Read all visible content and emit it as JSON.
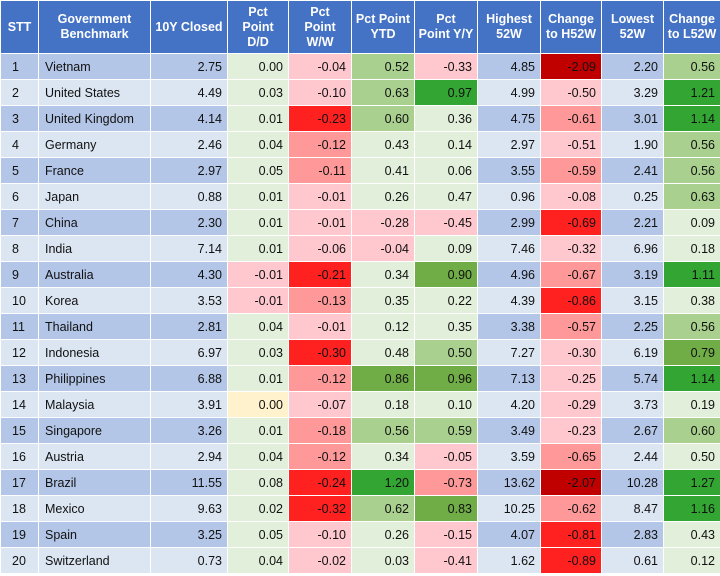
{
  "table": {
    "headers": [
      {
        "l1": "STT",
        "l2": ""
      },
      {
        "l1": "Government",
        "l2": "Benchmark"
      },
      {
        "l1": "10Y Closed",
        "l2": ""
      },
      {
        "l1": "Pct",
        "l2": "Point D/D"
      },
      {
        "l1": "Pct",
        "l2": "Point W/W"
      },
      {
        "l1": "Pct Point",
        "l2": "YTD"
      },
      {
        "l1": "Pct",
        "l2": "Point Y/Y"
      },
      {
        "l1": "Highest",
        "l2": "52W"
      },
      {
        "l1": "Change",
        "l2": "to H52W"
      },
      {
        "l1": "Lowest",
        "l2": "52W"
      },
      {
        "l1": "Change",
        "l2": "to L52W"
      }
    ],
    "colors": {
      "header_bg": "#4472c4",
      "row_odd": "#b4c6e7",
      "row_even": "#dce6f2",
      "neutral": "#e2efda",
      "pos_light": "#c6e0b4",
      "pos_mid": "#a9d08e",
      "pos_strong": "#70ad47",
      "pos_max": "#33a532",
      "neg_light": "#ffc7ce",
      "neg_mid": "#ff9999",
      "neg_strong": "#ff2020",
      "neg_max": "#c00000",
      "zero_highlight": "#fff2cc"
    },
    "rows": [
      {
        "stt": "1",
        "country": "Vietnam",
        "closed": "2.75",
        "dd": "0.00",
        "ww": "-0.04",
        "ytd": "0.52",
        "yy": "-0.33",
        "high": "4.85",
        "ch_high": "-2.09",
        "low": "2.20",
        "ch_low": "0.56",
        "bg": {
          "dd": "neutral",
          "ww": "neg_light",
          "ytd": "pos_mid",
          "yy": "neg_light",
          "ch_high": "neg_max",
          "ch_low": "pos_mid"
        }
      },
      {
        "stt": "2",
        "country": "United States",
        "closed": "4.49",
        "dd": "0.03",
        "ww": "-0.10",
        "ytd": "0.63",
        "yy": "0.97",
        "high": "4.99",
        "ch_high": "-0.50",
        "low": "3.29",
        "ch_low": "1.21",
        "bg": {
          "dd": "neutral",
          "ww": "neg_light",
          "ytd": "pos_mid",
          "yy": "pos_max",
          "ch_high": "neg_light",
          "ch_low": "pos_max"
        }
      },
      {
        "stt": "3",
        "country": "United Kingdom",
        "closed": "4.14",
        "dd": "0.01",
        "ww": "-0.23",
        "ytd": "0.60",
        "yy": "0.36",
        "high": "4.75",
        "ch_high": "-0.61",
        "low": "3.01",
        "ch_low": "1.14",
        "bg": {
          "dd": "neutral",
          "ww": "neg_strong",
          "ytd": "pos_mid",
          "yy": "neutral",
          "ch_high": "neg_mid",
          "ch_low": "pos_max"
        }
      },
      {
        "stt": "4",
        "country": "Germany",
        "closed": "2.46",
        "dd": "0.04",
        "ww": "-0.12",
        "ytd": "0.43",
        "yy": "0.14",
        "high": "2.97",
        "ch_high": "-0.51",
        "low": "1.90",
        "ch_low": "0.56",
        "bg": {
          "dd": "neutral",
          "ww": "neg_mid",
          "ytd": "neutral",
          "yy": "neutral",
          "ch_high": "neg_light",
          "ch_low": "pos_mid"
        }
      },
      {
        "stt": "5",
        "country": "France",
        "closed": "2.97",
        "dd": "0.05",
        "ww": "-0.11",
        "ytd": "0.41",
        "yy": "0.06",
        "high": "3.55",
        "ch_high": "-0.59",
        "low": "2.41",
        "ch_low": "0.56",
        "bg": {
          "dd": "neutral",
          "ww": "neg_mid",
          "ytd": "neutral",
          "yy": "neutral",
          "ch_high": "neg_mid",
          "ch_low": "pos_mid"
        }
      },
      {
        "stt": "6",
        "country": "Japan",
        "closed": "0.88",
        "dd": "0.01",
        "ww": "-0.01",
        "ytd": "0.26",
        "yy": "0.47",
        "high": "0.96",
        "ch_high": "-0.08",
        "low": "0.25",
        "ch_low": "0.63",
        "bg": {
          "dd": "neutral",
          "ww": "neg_light",
          "ytd": "neutral",
          "yy": "neutral",
          "ch_high": "neg_light",
          "ch_low": "pos_mid"
        }
      },
      {
        "stt": "7",
        "country": "China",
        "closed": "2.30",
        "dd": "0.01",
        "ww": "-0.01",
        "ytd": "-0.28",
        "yy": "-0.45",
        "high": "2.99",
        "ch_high": "-0.69",
        "low": "2.21",
        "ch_low": "0.09",
        "bg": {
          "dd": "neutral",
          "ww": "neg_light",
          "ytd": "neg_light",
          "yy": "neg_light",
          "ch_high": "neg_strong",
          "ch_low": "neutral"
        }
      },
      {
        "stt": "8",
        "country": "India",
        "closed": "7.14",
        "dd": "0.01",
        "ww": "-0.06",
        "ytd": "-0.04",
        "yy": "0.09",
        "high": "7.46",
        "ch_high": "-0.32",
        "low": "6.96",
        "ch_low": "0.18",
        "bg": {
          "dd": "neutral",
          "ww": "neg_light",
          "ytd": "neg_light",
          "yy": "neutral",
          "ch_high": "neg_light",
          "ch_low": "neutral"
        }
      },
      {
        "stt": "9",
        "country": "Australia",
        "closed": "4.30",
        "dd": "-0.01",
        "ww": "-0.21",
        "ytd": "0.34",
        "yy": "0.90",
        "high": "4.96",
        "ch_high": "-0.67",
        "low": "3.19",
        "ch_low": "1.11",
        "bg": {
          "dd": "neg_light",
          "ww": "neg_strong",
          "ytd": "neutral",
          "yy": "pos_strong",
          "ch_high": "neg_mid",
          "ch_low": "pos_max"
        }
      },
      {
        "stt": "10",
        "country": "Korea",
        "closed": "3.53",
        "dd": "-0.01",
        "ww": "-0.13",
        "ytd": "0.35",
        "yy": "0.22",
        "high": "4.39",
        "ch_high": "-0.86",
        "low": "3.15",
        "ch_low": "0.38",
        "bg": {
          "dd": "neg_light",
          "ww": "neg_mid",
          "ytd": "neutral",
          "yy": "neutral",
          "ch_high": "neg_strong",
          "ch_low": "neutral"
        }
      },
      {
        "stt": "11",
        "country": "Thailand",
        "closed": "2.81",
        "dd": "0.04",
        "ww": "-0.01",
        "ytd": "0.12",
        "yy": "0.35",
        "high": "3.38",
        "ch_high": "-0.57",
        "low": "2.25",
        "ch_low": "0.56",
        "bg": {
          "dd": "neutral",
          "ww": "neg_light",
          "ytd": "neutral",
          "yy": "neutral",
          "ch_high": "neg_mid",
          "ch_low": "pos_mid"
        }
      },
      {
        "stt": "12",
        "country": "Indonesia",
        "closed": "6.97",
        "dd": "0.03",
        "ww": "-0.30",
        "ytd": "0.48",
        "yy": "0.50",
        "high": "7.27",
        "ch_high": "-0.30",
        "low": "6.19",
        "ch_low": "0.79",
        "bg": {
          "dd": "neutral",
          "ww": "neg_strong",
          "ytd": "neutral",
          "yy": "pos_mid",
          "ch_high": "neg_light",
          "ch_low": "pos_strong"
        }
      },
      {
        "stt": "13",
        "country": "Philippines",
        "closed": "6.88",
        "dd": "0.01",
        "ww": "-0.12",
        "ytd": "0.86",
        "yy": "0.96",
        "high": "7.13",
        "ch_high": "-0.25",
        "low": "5.74",
        "ch_low": "1.14",
        "bg": {
          "dd": "neutral",
          "ww": "neg_mid",
          "ytd": "pos_strong",
          "yy": "pos_strong",
          "ch_high": "neg_light",
          "ch_low": "pos_max"
        }
      },
      {
        "stt": "14",
        "country": "Malaysia",
        "closed": "3.91",
        "dd": "0.00",
        "ww": "-0.07",
        "ytd": "0.18",
        "yy": "0.10",
        "high": "4.20",
        "ch_high": "-0.29",
        "low": "3.73",
        "ch_low": "0.19",
        "bg": {
          "dd": "zero_highlight",
          "ww": "neg_light",
          "ytd": "neutral",
          "yy": "neutral",
          "ch_high": "neg_light",
          "ch_low": "neutral"
        }
      },
      {
        "stt": "15",
        "country": "Singapore",
        "closed": "3.26",
        "dd": "0.01",
        "ww": "-0.18",
        "ytd": "0.56",
        "yy": "0.59",
        "high": "3.49",
        "ch_high": "-0.23",
        "low": "2.67",
        "ch_low": "0.60",
        "bg": {
          "dd": "neutral",
          "ww": "neg_mid",
          "ytd": "pos_mid",
          "yy": "pos_mid",
          "ch_high": "neg_light",
          "ch_low": "pos_mid"
        }
      },
      {
        "stt": "16",
        "country": "Austria",
        "closed": "2.94",
        "dd": "0.04",
        "ww": "-0.12",
        "ytd": "0.34",
        "yy": "-0.05",
        "high": "3.59",
        "ch_high": "-0.65",
        "low": "2.44",
        "ch_low": "0.50",
        "bg": {
          "dd": "neutral",
          "ww": "neg_mid",
          "ytd": "neutral",
          "yy": "neg_light",
          "ch_high": "neg_mid",
          "ch_low": "neutral"
        }
      },
      {
        "stt": "17",
        "country": "Brazil",
        "closed": "11.55",
        "dd": "0.08",
        "ww": "-0.24",
        "ytd": "1.20",
        "yy": "-0.73",
        "high": "13.62",
        "ch_high": "-2.07",
        "low": "10.28",
        "ch_low": "1.27",
        "bg": {
          "dd": "neutral",
          "ww": "neg_strong",
          "ytd": "pos_max",
          "yy": "neg_mid",
          "ch_high": "neg_max",
          "ch_low": "pos_max"
        }
      },
      {
        "stt": "18",
        "country": "Mexico",
        "closed": "9.63",
        "dd": "0.02",
        "ww": "-0.32",
        "ytd": "0.62",
        "yy": "0.83",
        "high": "10.25",
        "ch_high": "-0.62",
        "low": "8.47",
        "ch_low": "1.16",
        "bg": {
          "dd": "neutral",
          "ww": "neg_strong",
          "ytd": "pos_mid",
          "yy": "pos_strong",
          "ch_high": "neg_mid",
          "ch_low": "pos_max"
        }
      },
      {
        "stt": "19",
        "country": "Spain",
        "closed": "3.25",
        "dd": "0.05",
        "ww": "-0.10",
        "ytd": "0.26",
        "yy": "-0.15",
        "high": "4.07",
        "ch_high": "-0.81",
        "low": "2.83",
        "ch_low": "0.43",
        "bg": {
          "dd": "neutral",
          "ww": "neg_light",
          "ytd": "neutral",
          "yy": "neg_light",
          "ch_high": "neg_strong",
          "ch_low": "neutral"
        }
      },
      {
        "stt": "20",
        "country": "Switzerland",
        "closed": "0.73",
        "dd": "0.04",
        "ww": "-0.02",
        "ytd": "0.03",
        "yy": "-0.41",
        "high": "1.62",
        "ch_high": "-0.89",
        "low": "0.61",
        "ch_low": "0.12",
        "bg": {
          "dd": "neutral",
          "ww": "neg_light",
          "ytd": "neutral",
          "yy": "neg_light",
          "ch_high": "neg_strong",
          "ch_low": "neutral"
        }
      }
    ]
  }
}
